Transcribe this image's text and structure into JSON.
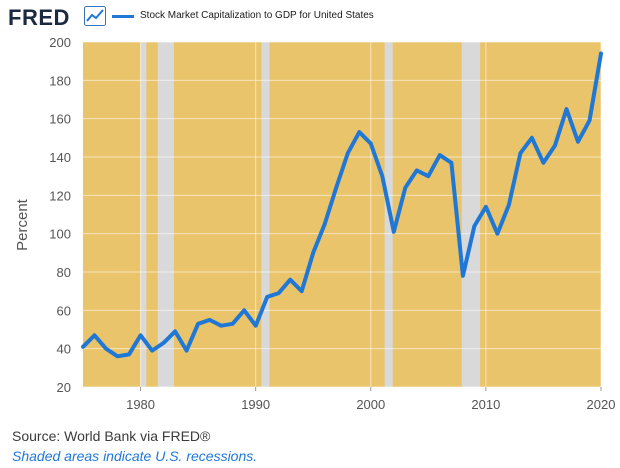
{
  "header": {
    "logo_text": "FRED",
    "logo_icon": "chart-line-icon",
    "legend_label": "Stock Market Capitalization to GDP for United States",
    "legend_color": "#1f77d6"
  },
  "footer": {
    "source": "Source: World Bank via FRED®",
    "note": "Shaded areas indicate U.S. recessions."
  },
  "colors": {
    "plot_background": "#e9c46a",
    "recession": "#d9d9d9",
    "series": "#1f77d6",
    "grid": "#ffffff"
  },
  "chart_data": {
    "type": "line",
    "title": "Stock Market Capitalization to GDP for United States",
    "xlabel": "",
    "ylabel": "Percent",
    "xlim": [
      1975,
      2020
    ],
    "ylim": [
      20,
      200
    ],
    "grid": true,
    "legend": "top-left",
    "x_ticks": [
      1980,
      1990,
      2000,
      2010,
      2020
    ],
    "y_ticks": [
      20,
      40,
      60,
      80,
      100,
      120,
      140,
      160,
      180,
      200
    ],
    "recessions": [
      [
        1980.0,
        1980.5
      ],
      [
        1981.5,
        1982.9
      ],
      [
        1990.5,
        1991.2
      ],
      [
        2001.2,
        2001.9
      ],
      [
        2007.9,
        2009.5
      ]
    ],
    "series": [
      {
        "name": "Stock Market Capitalization to GDP for United States",
        "x": [
          1975,
          1976,
          1977,
          1978,
          1979,
          1980,
          1981,
          1982,
          1983,
          1984,
          1985,
          1986,
          1987,
          1988,
          1989,
          1990,
          1991,
          1992,
          1993,
          1994,
          1995,
          1996,
          1997,
          1998,
          1999,
          2000,
          2001,
          2002,
          2003,
          2004,
          2005,
          2006,
          2007,
          2008,
          2009,
          2010,
          2011,
          2012,
          2013,
          2014,
          2015,
          2016,
          2017,
          2018,
          2019,
          2020
        ],
        "values": [
          41,
          47,
          40,
          36,
          37,
          47,
          39,
          43,
          49,
          39,
          53,
          55,
          52,
          53,
          60,
          52,
          67,
          69,
          76,
          70,
          90,
          105,
          124,
          142,
          153,
          147,
          130,
          101,
          124,
          133,
          130,
          141,
          137,
          78,
          104,
          114,
          100,
          115,
          142,
          150,
          137,
          146,
          165,
          148,
          159,
          194
        ]
      }
    ]
  }
}
